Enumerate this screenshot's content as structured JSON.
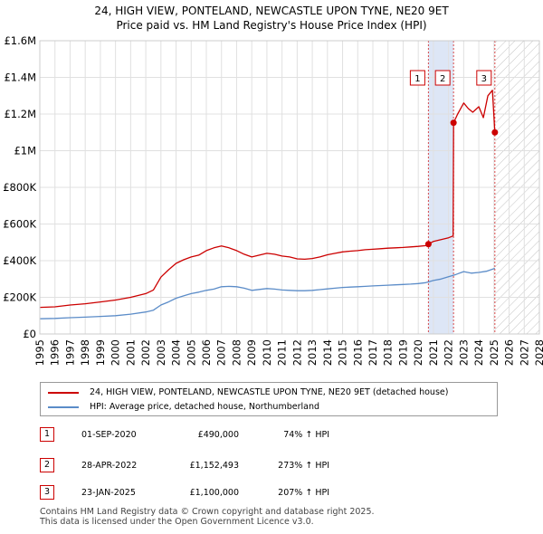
{
  "title": {
    "line1": "24, HIGH VIEW, PONTELAND, NEWCASTLE UPON TYNE, NE20 9ET",
    "line2": "Price paid vs. HM Land Registry's House Price Index (HPI)"
  },
  "colors": {
    "property": "#cc0000",
    "hpi": "#5b8cc8",
    "band": "#dde6f6",
    "grid": "#e0e0e0",
    "marker_line": "#cc0000"
  },
  "chart_data": {
    "type": "line",
    "title": "24, HIGH VIEW, PONTELAND, NEWCASTLE UPON TYNE, NE20 9ET",
    "subtitle": "Price paid vs. HM Land Registry's House Price Index (HPI)",
    "xlim": [
      1995,
      2028
    ],
    "ylim": [
      0,
      1600000
    ],
    "x_ticks": [
      "1995",
      "1996",
      "1997",
      "1998",
      "1999",
      "2000",
      "2001",
      "2002",
      "2003",
      "2004",
      "2005",
      "2006",
      "2007",
      "2008",
      "2009",
      "2010",
      "2011",
      "2012",
      "2013",
      "2014",
      "2015",
      "2016",
      "2017",
      "2018",
      "2019",
      "2020",
      "2021",
      "2022",
      "2023",
      "2024",
      "2025",
      "2026",
      "2027",
      "2028"
    ],
    "y_ticks": [
      {
        "value": 0,
        "label": "£0"
      },
      {
        "value": 200000,
        "label": "£200K"
      },
      {
        "value": 400000,
        "label": "£400K"
      },
      {
        "value": 600000,
        "label": "£600K"
      },
      {
        "value": 800000,
        "label": "£800K"
      },
      {
        "value": 1000000,
        "label": "£1M"
      },
      {
        "value": 1200000,
        "label": "£1.2M"
      },
      {
        "value": 1400000,
        "label": "£1.4M"
      },
      {
        "value": 1600000,
        "label": "£1.6M"
      }
    ],
    "shaded_band": [
      2020.67,
      2022.33
    ],
    "future_hatch_from": 2025.06,
    "series": [
      {
        "name": "24, HIGH VIEW, PONTELAND, NEWCASTLE UPON TYNE, NE20 9ET (detached house)",
        "color": "#cc0000",
        "x": [
          1995,
          1996,
          1997,
          1998,
          1999,
          2000,
          2001,
          2002,
          2002.5,
          2003,
          2003.5,
          2004,
          2004.5,
          2005,
          2005.5,
          2006,
          2006.5,
          2007,
          2007.5,
          2008,
          2008.5,
          2009,
          2009.5,
          2010,
          2010.5,
          2011,
          2011.5,
          2012,
          2012.5,
          2013,
          2013.5,
          2014,
          2014.5,
          2015,
          2015.5,
          2016,
          2016.5,
          2017,
          2017.5,
          2018,
          2018.5,
          2019,
          2019.5,
          2020,
          2020.5,
          2020.67,
          2021,
          2021.5,
          2022,
          2022.3,
          2022.32,
          2022.33,
          2022.6,
          2023,
          2023.3,
          2023.6,
          2024,
          2024.3,
          2024.6,
          2024.9,
          2025.06
        ],
        "y": [
          145000,
          148000,
          158000,
          165000,
          175000,
          185000,
          200000,
          220000,
          240000,
          310000,
          350000,
          385000,
          405000,
          420000,
          430000,
          455000,
          470000,
          480000,
          470000,
          455000,
          435000,
          420000,
          430000,
          440000,
          435000,
          425000,
          420000,
          410000,
          408000,
          412000,
          420000,
          432000,
          440000,
          448000,
          452000,
          455000,
          460000,
          462000,
          465000,
          468000,
          470000,
          472000,
          475000,
          478000,
          482000,
          490000,
          505000,
          515000,
          525000,
          535000,
          900000,
          1152493,
          1200000,
          1260000,
          1230000,
          1210000,
          1240000,
          1180000,
          1300000,
          1330000,
          1100000
        ]
      },
      {
        "name": "HPI: Average price, detached house, Northumberland",
        "color": "#5b8cc8",
        "x": [
          1995,
          1996,
          1997,
          1998,
          1999,
          2000,
          2001,
          2002,
          2002.5,
          2003,
          2003.5,
          2004,
          2004.5,
          2005,
          2005.5,
          2006,
          2006.5,
          2007,
          2007.5,
          2008,
          2008.5,
          2009,
          2009.5,
          2010,
          2010.5,
          2011,
          2011.5,
          2012,
          2012.5,
          2013,
          2013.5,
          2014,
          2014.5,
          2015,
          2015.5,
          2016,
          2016.5,
          2017,
          2017.5,
          2018,
          2018.5,
          2019,
          2019.5,
          2020,
          2020.5,
          2021,
          2021.5,
          2022,
          2022.5,
          2023,
          2023.5,
          2024,
          2024.5,
          2025.06
        ],
        "y": [
          83000,
          85000,
          89000,
          92000,
          96000,
          100000,
          108000,
          120000,
          130000,
          158000,
          175000,
          195000,
          208000,
          220000,
          228000,
          238000,
          245000,
          258000,
          260000,
          258000,
          250000,
          238000,
          243000,
          248000,
          245000,
          240000,
          238000,
          236000,
          236000,
          238000,
          242000,
          246000,
          250000,
          254000,
          256000,
          258000,
          260000,
          262000,
          264000,
          266000,
          268000,
          270000,
          272000,
          275000,
          280000,
          292000,
          300000,
          312000,
          325000,
          340000,
          332000,
          336000,
          342000,
          358000
        ]
      }
    ],
    "transactions": [
      {
        "id": "1",
        "date": "01-SEP-2020",
        "x": 2020.67,
        "price": 490000,
        "price_label": "£490,000",
        "hpi_change": "74% ↑ HPI"
      },
      {
        "id": "2",
        "date": "28-APR-2022",
        "x": 2022.33,
        "price": 1152493,
        "price_label": "£1,152,493",
        "hpi_change": "273% ↑ HPI"
      },
      {
        "id": "3",
        "date": "23-JAN-2025",
        "x": 2025.06,
        "price": 1100000,
        "price_label": "£1,100,000",
        "hpi_change": "207% ↑ HPI"
      }
    ]
  },
  "legend": {
    "property_label": "24, HIGH VIEW, PONTELAND, NEWCASTLE UPON TYNE, NE20 9ET (detached house)",
    "hpi_label": "HPI: Average price, detached house, Northumberland"
  },
  "footer": {
    "line1": "Contains HM Land Registry data © Crown copyright and database right 2025.",
    "line2": "This data is licensed under the Open Government Licence v3.0."
  }
}
